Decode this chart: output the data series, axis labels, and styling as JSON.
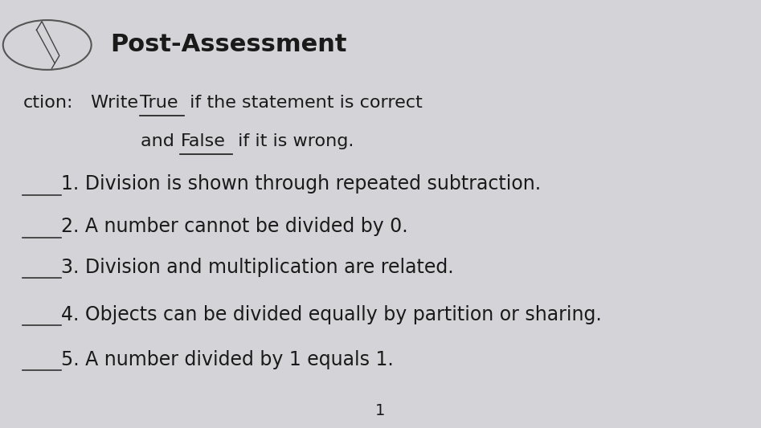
{
  "background_color": "#d4d4d8",
  "title": "Post-Assessment",
  "title_fontsize": 22,
  "instruction_label": "ction:",
  "instruction_write": " Write ",
  "instruction_true": "True",
  "instruction_mid1": " if the statement is correct",
  "instruction_and": "        and ",
  "instruction_false": "False",
  "instruction_mid2": " if it is wrong.",
  "items": [
    "1. Division is shown through repeated subtraction.",
    "2. A number cannot be divided by 0.",
    "3. Division and multiplication are related.",
    "4. Objects can be divided equally by partition or sharing.",
    "5. A number divided by 1 equals 1."
  ],
  "page_number": "1",
  "text_color": "#1a1a1a",
  "line_color": "#333333",
  "font_size_items": 17,
  "font_size_instr": 16
}
